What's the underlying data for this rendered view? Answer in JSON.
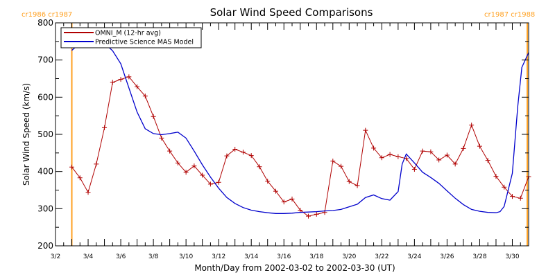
{
  "chart_data": {
    "type": "line",
    "title": "Solar Wind Speed Comparisons",
    "xlabel": "Month/Day from 2002-03-02 to 2002-03-30 (UT)",
    "ylabel": "Solar Wind Speed (km/s)",
    "xlim": [
      "2002-03-02",
      "2002-03-31"
    ],
    "ylim": [
      200,
      800
    ],
    "x_ticks": [
      "3/2",
      "3/4",
      "3/6",
      "3/8",
      "3/10",
      "3/12",
      "3/14",
      "3/16",
      "3/18",
      "3/20",
      "3/22",
      "3/24",
      "3/26",
      "3/28",
      "3/30"
    ],
    "y_ticks": [
      200,
      300,
      400,
      500,
      600,
      700,
      800
    ],
    "legend_position": "top-left",
    "grid": false,
    "colors": {
      "omni": "#b00000",
      "mas": "#0000cc",
      "rotation": "#ffa020",
      "axes": "#000000"
    },
    "rotation_markers": [
      {
        "x": "2002-03-03T00:00",
        "label": "cr1986 cr1987"
      },
      {
        "x": "2002-03-30T22:00",
        "label": "cr1987 cr1988"
      }
    ],
    "series": [
      {
        "name": "OMNI_M (12-hr avg)",
        "key": "omni",
        "markers": "plus",
        "points": [
          [
            "2002-03-03T00:00",
            412
          ],
          [
            "2002-03-03T12:00",
            383
          ],
          [
            "2002-03-04T00:00",
            344
          ],
          [
            "2002-03-04T12:00",
            420
          ],
          [
            "2002-03-05T00:00",
            518
          ],
          [
            "2002-03-05T12:00",
            640
          ],
          [
            "2002-03-06T00:00",
            648
          ],
          [
            "2002-03-06T12:00",
            655
          ],
          [
            "2002-03-07T00:00",
            628
          ],
          [
            "2002-03-07T12:00",
            603
          ],
          [
            "2002-03-08T00:00",
            548
          ],
          [
            "2002-03-08T12:00",
            490
          ],
          [
            "2002-03-09T00:00",
            455
          ],
          [
            "2002-03-09T12:00",
            423
          ],
          [
            "2002-03-10T00:00",
            398
          ],
          [
            "2002-03-10T12:00",
            415
          ],
          [
            "2002-03-11T00:00",
            390
          ],
          [
            "2002-03-11T12:00",
            366
          ],
          [
            "2002-03-12T00:00",
            371
          ],
          [
            "2002-03-12T12:00",
            442
          ],
          [
            "2002-03-13T00:00",
            460
          ],
          [
            "2002-03-13T12:00",
            452
          ],
          [
            "2002-03-14T00:00",
            443
          ],
          [
            "2002-03-14T12:00",
            413
          ],
          [
            "2002-03-15T00:00",
            374
          ],
          [
            "2002-03-15T12:00",
            347
          ],
          [
            "2002-03-16T00:00",
            318
          ],
          [
            "2002-03-16T12:00",
            326
          ],
          [
            "2002-03-17T00:00",
            296
          ],
          [
            "2002-03-17T12:00",
            280
          ],
          [
            "2002-03-18T00:00",
            285
          ],
          [
            "2002-03-18T12:00",
            290
          ],
          [
            "2002-03-19T00:00",
            428
          ],
          [
            "2002-03-19T12:00",
            414
          ],
          [
            "2002-03-20T00:00",
            373
          ],
          [
            "2002-03-20T12:00",
            362
          ],
          [
            "2002-03-21T00:00",
            511
          ],
          [
            "2002-03-21T12:00",
            463
          ],
          [
            "2002-03-22T00:00",
            437
          ],
          [
            "2002-03-22T12:00",
            446
          ],
          [
            "2002-03-23T00:00",
            440
          ],
          [
            "2002-03-23T12:00",
            435
          ],
          [
            "2002-03-24T00:00",
            406
          ],
          [
            "2002-03-24T12:00",
            455
          ],
          [
            "2002-03-25T00:00",
            453
          ],
          [
            "2002-03-25T12:00",
            431
          ],
          [
            "2002-03-26T00:00",
            444
          ],
          [
            "2002-03-26T12:00",
            420
          ],
          [
            "2002-03-27T00:00",
            462
          ],
          [
            "2002-03-27T12:00",
            525
          ],
          [
            "2002-03-28T00:00",
            468
          ],
          [
            "2002-03-28T12:00",
            430
          ],
          [
            "2002-03-29T00:00",
            387
          ],
          [
            "2002-03-29T12:00",
            358
          ],
          [
            "2002-03-30T00:00",
            333
          ],
          [
            "2002-03-30T12:00",
            328
          ],
          [
            "2002-03-31T00:00",
            386
          ]
        ]
      },
      {
        "name": "Predictive Science MAS Model",
        "key": "mas",
        "markers": "none",
        "points": [
          [
            "2002-03-03T00:00",
            726
          ],
          [
            "2002-03-03T12:00",
            745
          ],
          [
            "2002-03-04T00:00",
            752
          ],
          [
            "2002-03-04T12:00",
            752
          ],
          [
            "2002-03-05T00:00",
            745
          ],
          [
            "2002-03-05T12:00",
            725
          ],
          [
            "2002-03-06T00:00",
            690
          ],
          [
            "2002-03-06T12:00",
            625
          ],
          [
            "2002-03-07T00:00",
            560
          ],
          [
            "2002-03-07T12:00",
            515
          ],
          [
            "2002-03-08T00:00",
            502
          ],
          [
            "2002-03-08T12:00",
            499
          ],
          [
            "2002-03-09T00:00",
            502
          ],
          [
            "2002-03-09T12:00",
            506
          ],
          [
            "2002-03-10T00:00",
            490
          ],
          [
            "2002-03-10T12:00",
            455
          ],
          [
            "2002-03-11T00:00",
            418
          ],
          [
            "2002-03-11T12:00",
            385
          ],
          [
            "2002-03-12T00:00",
            355
          ],
          [
            "2002-03-12T12:00",
            330
          ],
          [
            "2002-03-13T00:00",
            314
          ],
          [
            "2002-03-13T12:00",
            303
          ],
          [
            "2002-03-14T00:00",
            296
          ],
          [
            "2002-03-14T12:00",
            292
          ],
          [
            "2002-03-15T00:00",
            289
          ],
          [
            "2002-03-15T12:00",
            287
          ],
          [
            "2002-03-16T00:00",
            287
          ],
          [
            "2002-03-16T12:00",
            288
          ],
          [
            "2002-03-17T00:00",
            290
          ],
          [
            "2002-03-17T12:00",
            291
          ],
          [
            "2002-03-18T00:00",
            292
          ],
          [
            "2002-03-18T12:00",
            294
          ],
          [
            "2002-03-19T00:00",
            295
          ],
          [
            "2002-03-19T12:00",
            298
          ],
          [
            "2002-03-20T00:00",
            305
          ],
          [
            "2002-03-20T12:00",
            312
          ],
          [
            "2002-03-21T00:00",
            330
          ],
          [
            "2002-03-21T12:00",
            337
          ],
          [
            "2002-03-22T00:00",
            327
          ],
          [
            "2002-03-22T12:00",
            323
          ],
          [
            "2002-03-23T00:00",
            346
          ],
          [
            "2002-03-23T06:00",
            420
          ],
          [
            "2002-03-23T12:00",
            447
          ],
          [
            "2002-03-24T00:00",
            423
          ],
          [
            "2002-03-24T12:00",
            398
          ],
          [
            "2002-03-25T00:00",
            384
          ],
          [
            "2002-03-25T12:00",
            368
          ],
          [
            "2002-03-26T00:00",
            348
          ],
          [
            "2002-03-26T12:00",
            328
          ],
          [
            "2002-03-27T00:00",
            311
          ],
          [
            "2002-03-27T12:00",
            298
          ],
          [
            "2002-03-28T00:00",
            293
          ],
          [
            "2002-03-28T12:00",
            290
          ],
          [
            "2002-03-29T00:00",
            289
          ],
          [
            "2002-03-29T06:00",
            292
          ],
          [
            "2002-03-29T12:00",
            306
          ],
          [
            "2002-03-30T00:00",
            395
          ],
          [
            "2002-03-30T08:00",
            575
          ],
          [
            "2002-03-30T14:00",
            680
          ],
          [
            "2002-03-31T00:00",
            720
          ]
        ]
      }
    ]
  }
}
